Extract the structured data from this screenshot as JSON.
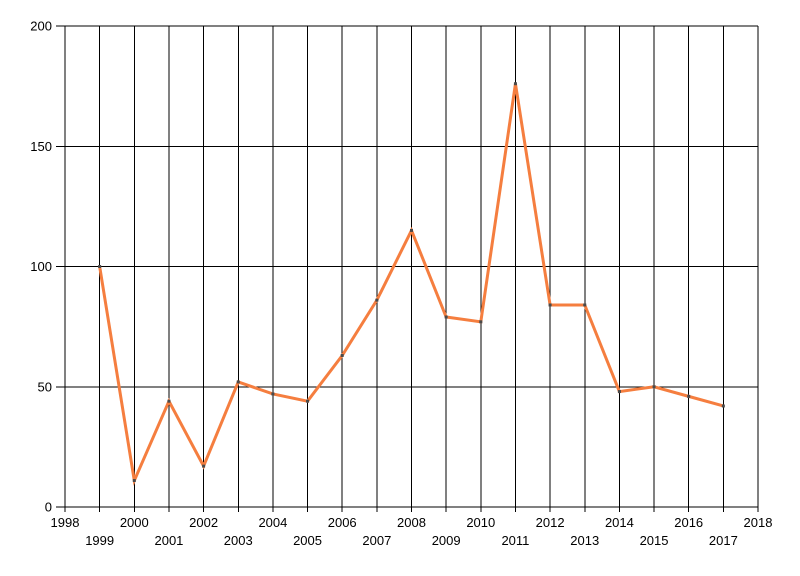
{
  "chart_data": {
    "type": "line",
    "x": [
      1999,
      2000,
      2001,
      2002,
      2003,
      2004,
      2005,
      2006,
      2007,
      2008,
      2009,
      2010,
      2011,
      2012,
      2013,
      2014,
      2015,
      2016,
      2017
    ],
    "values": [
      100,
      11,
      44,
      17,
      52,
      47,
      44,
      63,
      86,
      115,
      79,
      77,
      176,
      84,
      84,
      48,
      50,
      46,
      42
    ],
    "xlim": [
      1998,
      2018
    ],
    "ylim": [
      0,
      200
    ],
    "y_ticks": [
      0,
      50,
      100,
      150,
      200
    ],
    "x_ticks_top_row": [
      1998,
      2000,
      2002,
      2004,
      2006,
      2008,
      2010,
      2012,
      2014,
      2016,
      2018
    ],
    "x_ticks_bottom_row": [
      1999,
      2001,
      2003,
      2005,
      2007,
      2009,
      2011,
      2013,
      2015,
      2017
    ],
    "grid": "on",
    "legend": "none",
    "line_color": "#F57E3F",
    "marker_color": "#4A4A4A",
    "grid_color": "#000000",
    "label_color": "#000000",
    "background_color": "#FFFFFF"
  }
}
